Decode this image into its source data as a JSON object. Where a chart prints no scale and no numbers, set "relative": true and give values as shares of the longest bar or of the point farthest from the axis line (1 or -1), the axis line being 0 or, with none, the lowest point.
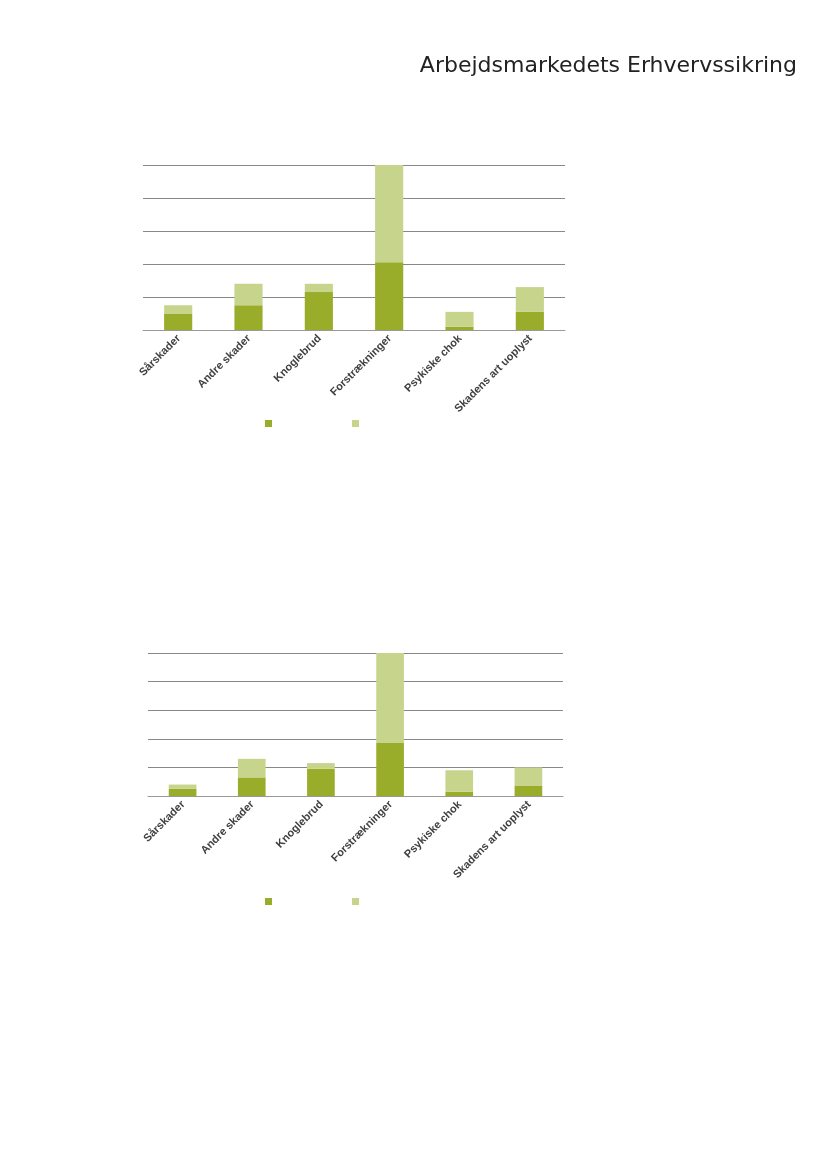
{
  "chart_data": [
    {
      "type": "bar",
      "title": "Arbejdsmarkedets Erhvervssikring",
      "categories": [
        "Sårskader",
        "Andre skader",
        "Knoglebrud",
        "Forstrækninger",
        "Psykiske chok",
        "Skadens art uoplyst"
      ],
      "stacked": true,
      "relative": true,
      "grid": true,
      "series": [
        {
          "color": "#9aad2a",
          "values": [
            0.1,
            0.15,
            0.23,
            0.41,
            0.02,
            0.11
          ]
        },
        {
          "color": "#c6d48c",
          "values": [
            0.05,
            0.13,
            0.05,
            0.59,
            0.09,
            0.15
          ]
        }
      ]
    },
    {
      "type": "bar",
      "categories": [
        "Sårskader",
        "Andre skader",
        "Knoglebrud",
        "Forstrækninger",
        "Psykiske chok",
        "Skadens art uoplyst"
      ],
      "stacked": true,
      "relative": true,
      "grid": true,
      "series": [
        {
          "color": "#9aad2a",
          "values": [
            0.05,
            0.13,
            0.19,
            0.37,
            0.03,
            0.07
          ]
        },
        {
          "color": "#c6d48c",
          "values": [
            0.03,
            0.13,
            0.04,
            0.63,
            0.15,
            0.13
          ]
        }
      ]
    }
  ]
}
